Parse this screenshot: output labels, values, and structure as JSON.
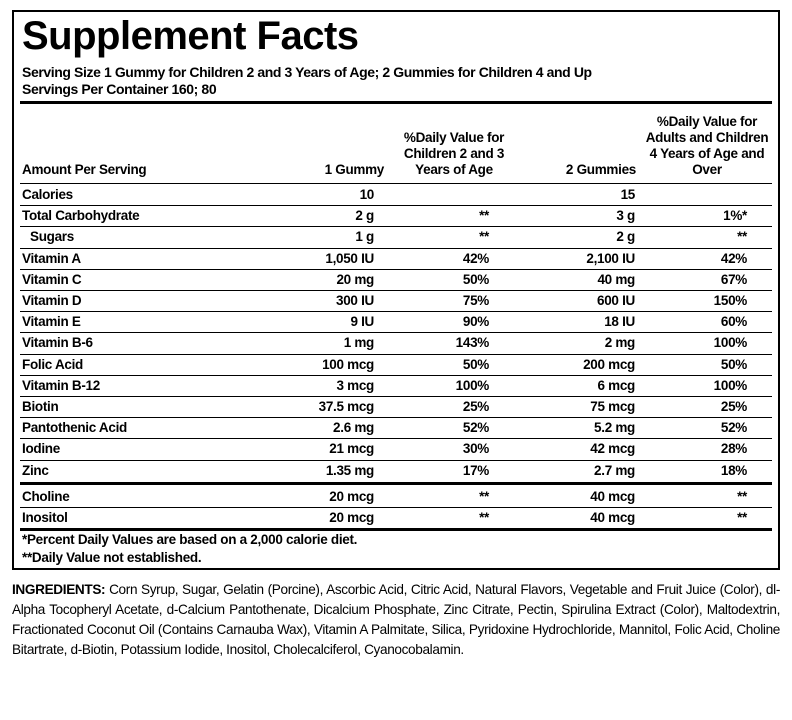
{
  "title": "Supplement Facts",
  "serving_size": "Serving Size 1 Gummy for Children 2 and 3 Years of Age; 2 Gummies for Children 4 and Up",
  "servings_per_container": "Servings Per Container 160; 80",
  "table": {
    "header": [
      "Amount Per Serving",
      "1 Gummy",
      "%Daily Value for Children 2 and 3 Years of Age",
      "2 Gummies",
      "%Daily Value for Adults and Children 4 Years of Age and Over"
    ],
    "rows": [
      [
        "Calories",
        "10",
        "",
        "15",
        ""
      ],
      [
        "Total Carbohydrate",
        "2 g",
        "**",
        "3 g",
        "1%*"
      ],
      [
        "Sugars",
        "1 g",
        "**",
        "2 g",
        "**"
      ],
      [
        "Vitamin A",
        "1,050 IU",
        "42%",
        "2,100 IU",
        "42%"
      ],
      [
        "Vitamin C",
        "20 mg",
        "50%",
        "40 mg",
        "67%"
      ],
      [
        "Vitamin D",
        "300 IU",
        "75%",
        "600 IU",
        "150%"
      ],
      [
        "Vitamin E",
        "9 IU",
        "90%",
        "18 IU",
        "60%"
      ],
      [
        "Vitamin B-6",
        "1 mg",
        "143%",
        "2 mg",
        "100%"
      ],
      [
        "Folic Acid",
        "100 mcg",
        "50%",
        "200 mcg",
        "50%"
      ],
      [
        "Vitamin B-12",
        "3 mcg",
        "100%",
        "6 mcg",
        "100%"
      ],
      [
        "Biotin",
        "37.5 mcg",
        "25%",
        "75 mcg",
        "25%"
      ],
      [
        "Pantothenic Acid",
        "2.6 mg",
        "52%",
        "5.2 mg",
        "52%"
      ],
      [
        "Iodine",
        "21 mcg",
        "30%",
        "42 mcg",
        "28%"
      ],
      [
        "Zinc",
        "1.35 mg",
        "17%",
        "2.7 mg",
        "18%"
      ],
      [
        "Choline",
        "20 mcg",
        "**",
        "40 mcg",
        "**"
      ],
      [
        "Inositol",
        "20 mcg",
        "**",
        "40 mcg",
        "**"
      ]
    ]
  },
  "footnotes": [
    "*Percent Daily Values are based on a 2,000 calorie diet.",
    "**Daily Value not established."
  ],
  "ingredients": {
    "label": "INGREDIENTS:",
    "text": "Corn Syrup, Sugar, Gelatin (Porcine), Ascorbic Acid, Citric Acid, Natural Flavors, Vegetable and Fruit Juice (Color), dl-Alpha Tocopheryl Acetate, d-Calcium Pantothenate, Dicalcium Phosphate, Zinc Citrate, Pectin, Spirulina Extract (Color), Maltodextrin, Fractionated Coconut Oil (Contains Carnauba Wax), Vitamin A Palmitate, Silica, Pyridoxine Hydrochloride, Mannitol, Folic Acid, Choline Bitartrate, d-Biotin, Potassium Iodide, Inositol, Cholecalciferol, Cyanocobalamin."
  }
}
